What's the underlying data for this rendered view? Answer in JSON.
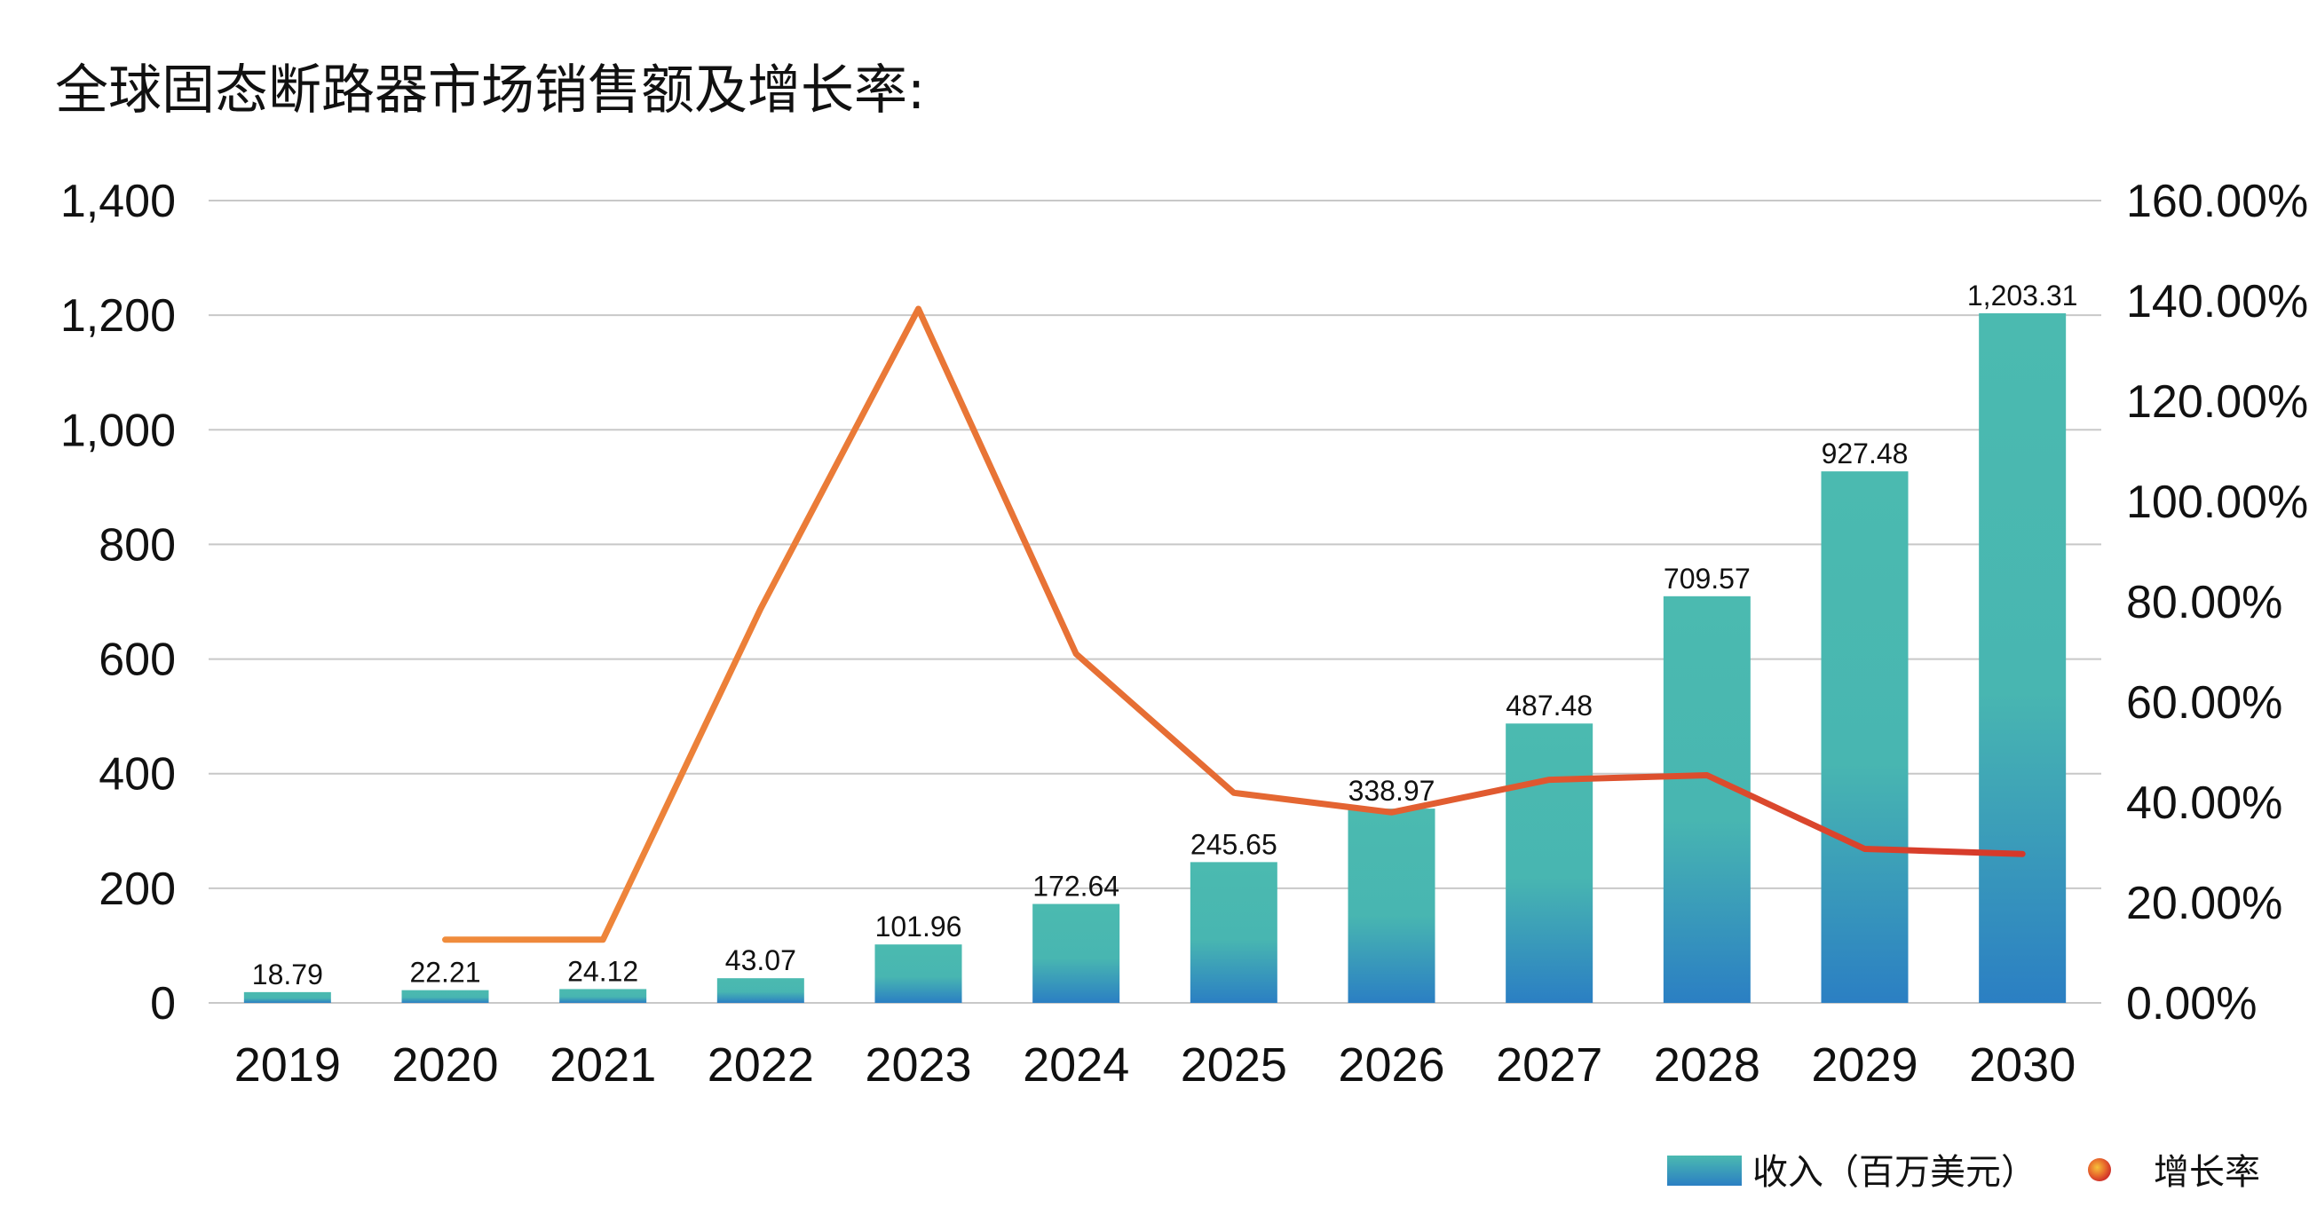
{
  "chart_data": {
    "type": "bar",
    "title": "全球固态断路器市场销售额及增长率:",
    "categories": [
      "2019",
      "2020",
      "2021",
      "2022",
      "2023",
      "2024",
      "2025",
      "2026",
      "2027",
      "2028",
      "2029",
      "2030"
    ],
    "series": [
      {
        "name": "收入（百万美元）",
        "type": "bar",
        "axis": "left",
        "values": [
          18.79,
          22.21,
          24.12,
          43.07,
          101.96,
          172.64,
          245.65,
          338.97,
          487.48,
          709.57,
          927.48,
          1203.31
        ],
        "labels": [
          "18.79",
          "22.21",
          "24.12",
          "43.07",
          "101.96",
          "172.64",
          "245.65",
          "338.97",
          "487.48",
          "709.57",
          "927.48",
          "1,203.31"
        ]
      },
      {
        "name": "增长率",
        "type": "line",
        "axis": "right",
        "values": [
          null,
          12.6,
          12.6,
          78.6,
          138.4,
          69.6,
          41.9,
          38.0,
          44.5,
          45.4,
          30.7,
          29.7
        ]
      }
    ],
    "y_left": {
      "min": 0,
      "max": 1400,
      "ticks": [
        "1,400",
        "1,200",
        "1,000",
        "800",
        "600",
        "400",
        "200",
        "0"
      ]
    },
    "y_right": {
      "min": 0,
      "max": 160,
      "ticks": [
        "160.00%",
        "140.00%",
        "120.00%",
        "100.00%",
        "80.00%",
        "60.00%",
        "40.00%",
        "20.00%",
        "0.00%"
      ]
    },
    "grid": true,
    "legend_position": "bottom-right",
    "colors": {
      "bar_top": "#4bbab0",
      "bar_bottom": "#2b7fc3",
      "line_start": "#f08c3c",
      "line_end": "#d6382a",
      "grid": "#c8c8c8"
    }
  }
}
